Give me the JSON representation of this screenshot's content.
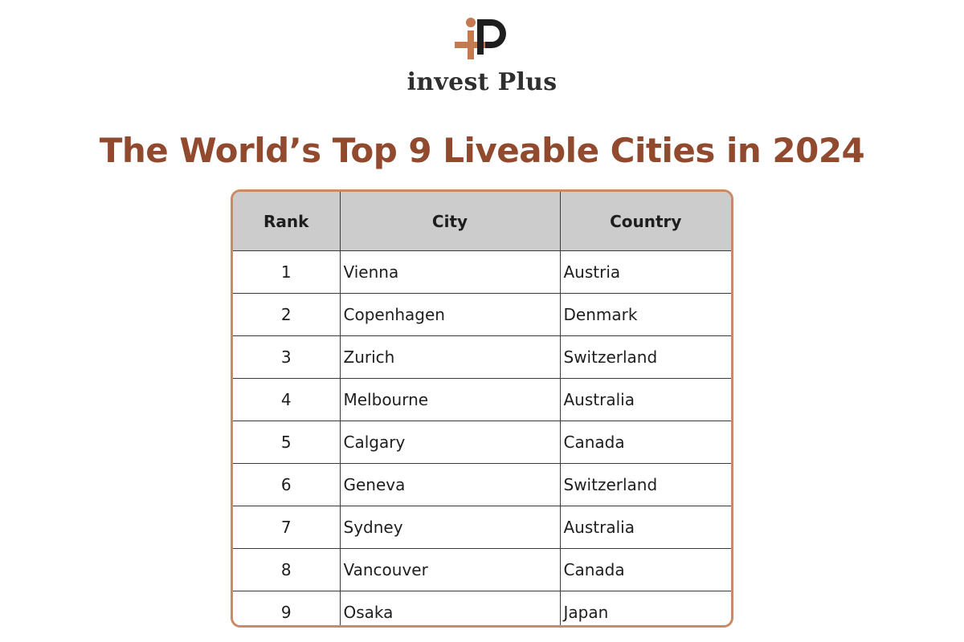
{
  "logo": {
    "wordmark": "invest Plus",
    "accent_color": "#c47a50",
    "dark_color": "#1e1e1e"
  },
  "title": "The World’s Top 9 Liveable Cities in 2024",
  "colors": {
    "title": "#924a2e",
    "table_border": "#c98a66",
    "header_bg": "#cccccc"
  },
  "table": {
    "headers": [
      "Rank",
      "City",
      "Country"
    ],
    "rows": [
      {
        "rank": "1",
        "city": "Vienna",
        "country": "Austria"
      },
      {
        "rank": "2",
        "city": "Copenhagen",
        "country": "Denmark"
      },
      {
        "rank": "3",
        "city": "Zurich",
        "country": "Switzerland"
      },
      {
        "rank": "4",
        "city": "Melbourne",
        "country": "Australia"
      },
      {
        "rank": "5",
        "city": "Calgary",
        "country": "Canada"
      },
      {
        "rank": "6",
        "city": "Geneva",
        "country": "Switzerland"
      },
      {
        "rank": "7",
        "city": "Sydney",
        "country": "Australia"
      },
      {
        "rank": "8",
        "city": "Vancouver",
        "country": "Canada"
      },
      {
        "rank": "9",
        "city": "Osaka",
        "country": "Japan"
      }
    ]
  }
}
